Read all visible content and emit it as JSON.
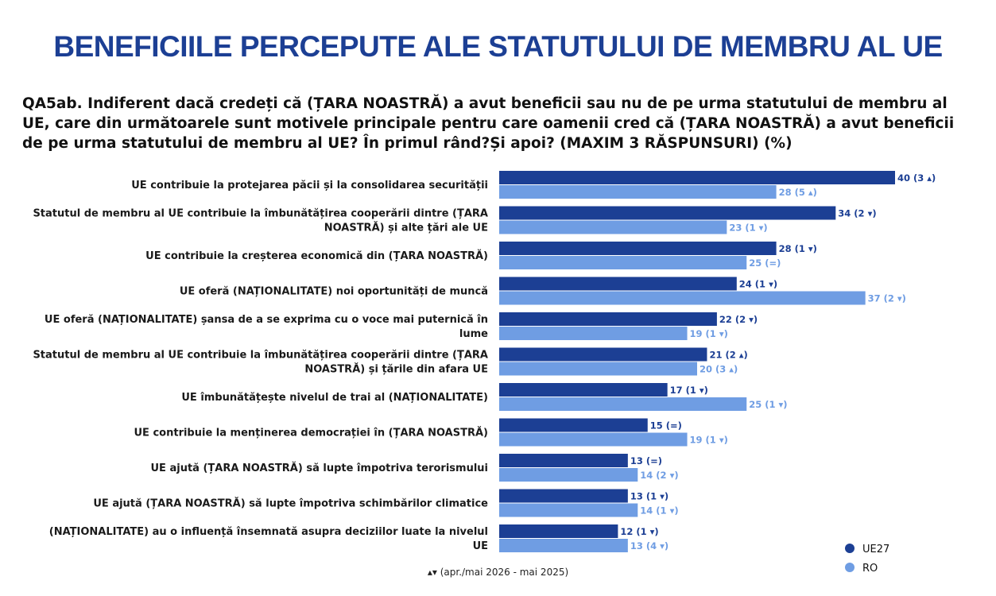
{
  "title": "BENEFICIILE PERCEPUTE ALE STATUTULUI DE MEMBRU AL UE",
  "question": "QA5ab. Indiferent dacă credeți că (ȚARA NOASTRĂ) a avut beneficii sau nu de pe urma statutului de membru al UE, care din următoarele sunt motivele principale pentru care oamenii cred că (ȚARA NOASTRĂ) a avut beneficii de pe urma statutului de membru al UE? În primul rând?Și apoi? (MAXIM 3 RĂSPUNSURI) (%)",
  "footnote": "▴▾ (apr./mai 2026 - mai 2025)",
  "colors": {
    "UE27": "#1c3f94",
    "RO": "#6f9de3"
  },
  "chart_data": {
    "type": "bar",
    "orientation": "horizontal",
    "categories": [
      [
        "UE contribuie la protejarea păcii și la consolidarea securității"
      ],
      [
        "Statutul de membru al UE contribuie la îmbunătățirea cooperării dintre (ȚARA",
        "NOASTRĂ) și alte țări ale UE"
      ],
      [
        "UE contribuie la creșterea economică din (ȚARA NOASTRĂ)"
      ],
      [
        "UE oferă (NAȚIONALITATE) noi oportunități de muncă"
      ],
      [
        "UE oferă (NAȚIONALITATE) șansa de a se exprima cu o voce mai puternică în",
        "lume"
      ],
      [
        "Statutul de membru al UE contribuie la îmbunătățirea cooperării dintre (ȚARA",
        "NOASTRĂ) și țările din afara UE"
      ],
      [
        "UE îmbunătățește nivelul de trai al (NAȚIONALITATE)"
      ],
      [
        "UE contribuie la menținerea democrației în (ȚARA NOASTRĂ)"
      ],
      [
        "UE ajută (ȚARA NOASTRĂ) să lupte împotriva terorismului"
      ],
      [
        "UE ajută (ȚARA NOASTRĂ) să lupte împotriva schimbărilor climatice"
      ],
      [
        "(NAȚIONALITATE) au o influență însemnată asupra deciziilor luate la nivelul",
        "UE"
      ]
    ],
    "series": [
      {
        "name": "UE27",
        "values": [
          40,
          34,
          28,
          24,
          22,
          21,
          17,
          15,
          13,
          13,
          12
        ],
        "labels": [
          "40 (3 ▴)",
          "34 (2 ▾)",
          "28 (1 ▾)",
          "24 (1 ▾)",
          "22 (2 ▾)",
          "21 (2 ▴)",
          "17 (1 ▾)",
          "15 (=)",
          "13 (=)",
          "13 (1 ▾)",
          "12 (1 ▾)"
        ]
      },
      {
        "name": "RO",
        "values": [
          28,
          23,
          25,
          37,
          19,
          20,
          25,
          19,
          14,
          14,
          13
        ],
        "labels": [
          "28 (5 ▴)",
          "23 (1 ▾)",
          "25 (=)",
          "37 (2 ▾)",
          "19 (1 ▾)",
          "20 (3 ▴)",
          "25 (1 ▾)",
          "19 (1 ▾)",
          "14 (2 ▾)",
          "14 (1 ▾)",
          "13 (4 ▾)"
        ]
      }
    ],
    "xlim": [
      0,
      40
    ],
    "grid": false,
    "legend_position": "bottom-right"
  }
}
